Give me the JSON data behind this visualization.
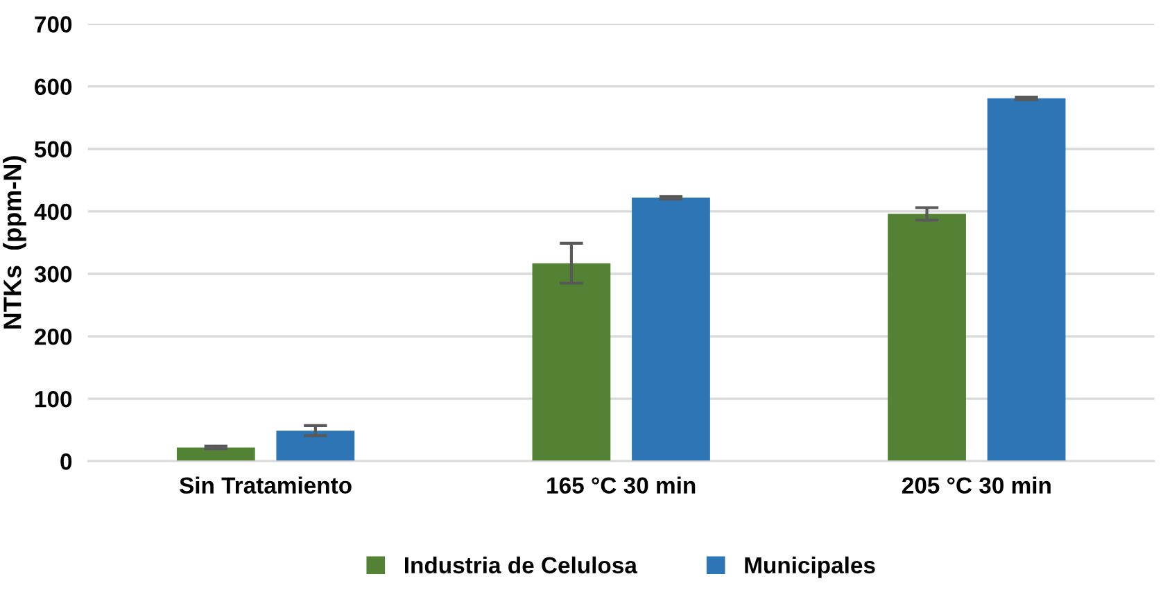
{
  "chart_data": {
    "type": "bar",
    "ylabel": "NTKs  (ppm-N)",
    "categories": [
      "Sin Tratamiento",
      "165 °C 30 min",
      "205 °C 30 min"
    ],
    "series": [
      {
        "name": "Industria de Celulosa",
        "color": "#548235",
        "values": [
          22,
          317,
          396
        ],
        "errors": [
          2,
          32,
          10
        ]
      },
      {
        "name": "Municipales",
        "color": "#2e75b6",
        "values": [
          49,
          422,
          581
        ],
        "errors": [
          8,
          2,
          2
        ]
      }
    ],
    "ylim": [
      0,
      700
    ],
    "yticks": [
      0,
      100,
      200,
      300,
      400,
      500,
      600,
      700
    ],
    "grid": "y",
    "legend": "bottom"
  }
}
